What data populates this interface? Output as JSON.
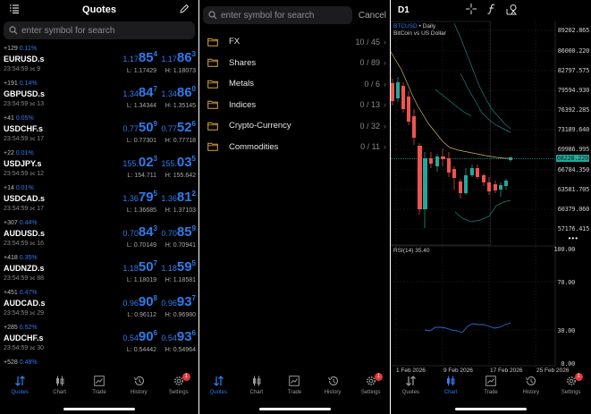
{
  "quotes_screen": {
    "header": {
      "title": "Quotes",
      "left_icon": "list-icon",
      "right_icon": "pencil-icon"
    },
    "search": {
      "placeholder": "enter symbol for search"
    },
    "rows": [
      {
        "change": "+129",
        "pct": "0.11%",
        "symbol": "EURUSD.s",
        "time": "23:54:59",
        "spread": "9",
        "bid_pre": "1.17",
        "bid_big": "85",
        "bid_sup": "4",
        "ask_pre": "1.17",
        "ask_big": "86",
        "ask_sup": "3",
        "low": "L: 1.17429",
        "high": "H: 1.18073"
      },
      {
        "change": "+191",
        "pct": "0.14%",
        "symbol": "GBPUSD.s",
        "time": "23:54:59",
        "spread": "13",
        "bid_pre": "1.34",
        "bid_big": "84",
        "bid_sup": "7",
        "ask_pre": "1.34",
        "ask_big": "86",
        "ask_sup": "0",
        "low": "L: 1.34344",
        "high": "H: 1.35145"
      },
      {
        "change": "+41",
        "pct": "0.05%",
        "symbol": "USDCHF.s",
        "time": "23:54:59",
        "spread": "17",
        "bid_pre": "0.77",
        "bid_big": "50",
        "bid_sup": "9",
        "ask_pre": "0.77",
        "ask_big": "52",
        "ask_sup": "6",
        "low": "L: 0.77301",
        "high": "H: 0.77718"
      },
      {
        "change": "+22",
        "pct": "0.01%",
        "symbol": "USDJPY.s",
        "time": "23:54:59",
        "spread": "12",
        "bid_pre": "155.",
        "bid_big": "02",
        "bid_sup": "3",
        "ask_pre": "155.",
        "ask_big": "03",
        "ask_sup": "5",
        "low": "L: 154.711",
        "high": "H: 155.642"
      },
      {
        "change": "+14",
        "pct": "0.01%",
        "symbol": "USDCAD.s",
        "time": "23:54:59",
        "spread": "17",
        "bid_pre": "1.36",
        "bid_big": "79",
        "bid_sup": "5",
        "ask_pre": "1.36",
        "ask_big": "81",
        "ask_sup": "2",
        "low": "L: 1.36685",
        "high": "H: 1.37103"
      },
      {
        "change": "+307",
        "pct": "0.44%",
        "symbol": "AUDUSD.s",
        "time": "23:54:59",
        "spread": "16",
        "bid_pre": "0.70",
        "bid_big": "84",
        "bid_sup": "3",
        "ask_pre": "0.70",
        "ask_big": "85",
        "ask_sup": "9",
        "low": "L: 0.70149",
        "high": "H: 0.70941"
      },
      {
        "change": "+418",
        "pct": "0.35%",
        "symbol": "AUDNZD.s",
        "time": "23:54:59",
        "spread": "88",
        "bid_pre": "1.18",
        "bid_big": "50",
        "bid_sup": "7",
        "ask_pre": "1.18",
        "ask_big": "59",
        "ask_sup": "5",
        "low": "L: 1.18019",
        "high": "H: 1.18581"
      },
      {
        "change": "+451",
        "pct": "0.47%",
        "symbol": "AUDCAD.s",
        "time": "23:54:59",
        "spread": "29",
        "bid_pre": "0.96",
        "bid_big": "90",
        "bid_sup": "8",
        "ask_pre": "0.96",
        "ask_big": "93",
        "ask_sup": "7",
        "low": "L: 0.96112",
        "high": "H: 0.96980"
      },
      {
        "change": "+285",
        "pct": "0.52%",
        "symbol": "AUDCHF.s",
        "time": "23:54:59",
        "spread": "30",
        "bid_pre": "0.54",
        "bid_big": "90",
        "bid_sup": "6",
        "ask_pre": "0.54",
        "ask_big": "93",
        "ask_sup": "6",
        "low": "L: 0.54442",
        "high": "H: 0.54964"
      },
      {
        "change": "+528",
        "pct": "0.48%",
        "symbol": "",
        "time": "",
        "spread": "",
        "bid_pre": "",
        "bid_big": "",
        "bid_sup": "",
        "ask_pre": "",
        "ask_big": "",
        "ask_sup": "",
        "low": "",
        "high": ""
      }
    ]
  },
  "symbols_screen": {
    "search": {
      "placeholder": "enter symbol for search",
      "cancel": "Cancel"
    },
    "categories": [
      {
        "name": "FX",
        "count": "10 / 45"
      },
      {
        "name": "Shares",
        "count": "0 / 89"
      },
      {
        "name": "Metals",
        "count": "0 / 6"
      },
      {
        "name": "Indices",
        "count": "0 / 13"
      },
      {
        "name": "Crypto-Currency",
        "count": "0 / 32"
      },
      {
        "name": "Commodities",
        "count": "0 / 11"
      }
    ]
  },
  "chart_screen": {
    "timeframe": "D1",
    "symbol": "BTCUSD",
    "period": "Daily",
    "description": "BitCoin vs US Dollar",
    "current_price": "68228.220",
    "price_labels": [
      "89202.865",
      "86000.220",
      "82797.575",
      "79594.930",
      "76392.285",
      "73189.640",
      "69986.995",
      "66784.350",
      "63581.705",
      "60379.060",
      "57176.415"
    ],
    "rsi_label": "RSI(14) 35.40",
    "rsi_levels": [
      "100.00",
      "70.00",
      "30.00",
      "0.00"
    ],
    "x_labels": [
      "1 Feb 2026",
      "9 Feb 2026",
      "17 Feb 2026",
      "25 Feb 2026"
    ]
  },
  "tabbar": {
    "tabs": [
      {
        "label": "Quotes",
        "icon": "quotes-arrows-icon"
      },
      {
        "label": "Chart",
        "icon": "candles-icon"
      },
      {
        "label": "Trade",
        "icon": "trade-chart-icon"
      },
      {
        "label": "History",
        "icon": "history-clock-icon"
      },
      {
        "label": "Settings",
        "icon": "gear-icon"
      }
    ],
    "settings_badge": "1"
  },
  "colors": {
    "accent": "#2f7bea",
    "bull": "#26a69a",
    "bear": "#ef5350",
    "folder": "#d9a441",
    "badge": "#e5383b"
  }
}
